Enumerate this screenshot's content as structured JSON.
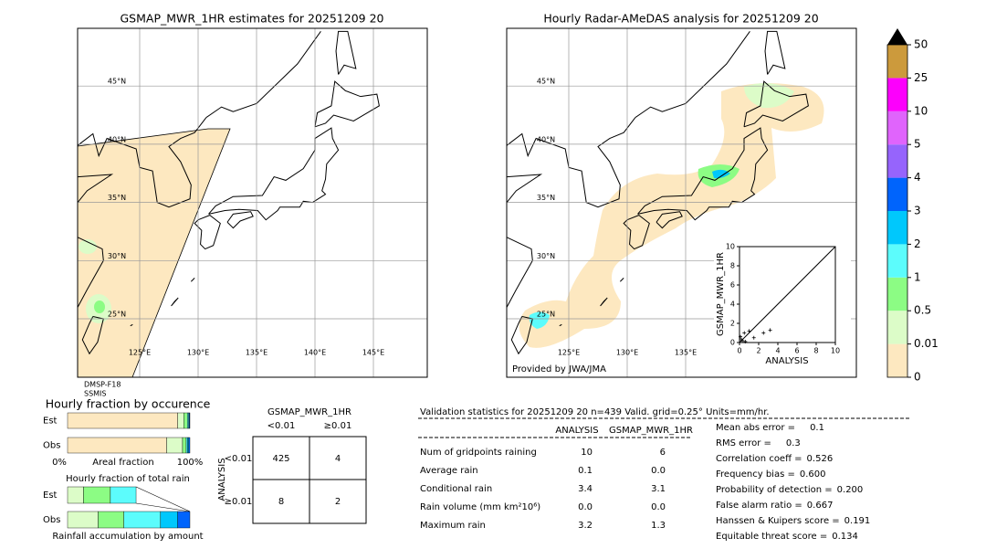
{
  "left_map": {
    "title": "GSMAP_MWR_1HR estimates for 20251209 20",
    "lat_labels": [
      {
        "value": 45,
        "label": "45°N"
      },
      {
        "value": 40,
        "label": "40°N"
      },
      {
        "value": 35,
        "label": "35°N"
      },
      {
        "value": 30,
        "label": "30°N"
      },
      {
        "value": 25,
        "label": "25°N"
      }
    ],
    "lon_labels": [
      {
        "value": 125,
        "label": "125°E"
      },
      {
        "value": 130,
        "label": "130°E"
      },
      {
        "value": 135,
        "label": "135°E"
      },
      {
        "value": 140,
        "label": "140°E"
      },
      {
        "value": 145,
        "label": "145°E"
      }
    ],
    "sensor": [
      "DMSP-F18",
      "SSMIS"
    ]
  },
  "right_map": {
    "title": "Hourly Radar-AMeDAS analysis for 20251209 20",
    "lat_labels": [
      {
        "value": 45,
        "label": "45°N"
      },
      {
        "value": 40,
        "label": "40°N"
      },
      {
        "value": 35,
        "label": "35°N"
      },
      {
        "value": 30,
        "label": "30°N"
      },
      {
        "value": 25,
        "label": "25°N"
      }
    ],
    "lon_labels": [
      {
        "value": 125,
        "label": "125°E"
      },
      {
        "value": 130,
        "label": "130°E"
      },
      {
        "value": 135,
        "label": "135°E"
      }
    ],
    "credit": "Provided by JWA/JMA"
  },
  "scatter": {
    "xlabel": "ANALYSIS",
    "ylabel": "GSMAP_MWR_1HR",
    "xlim": [
      0,
      10
    ],
    "ylim": [
      0,
      10
    ],
    "xticks": [
      0,
      2,
      4,
      6,
      8,
      10
    ],
    "yticks": [
      0,
      2,
      4,
      6,
      8,
      10
    ],
    "x": [
      0.2,
      0.5,
      1.0,
      0.3,
      2.5,
      3.2,
      0.1,
      1.5,
      0.6
    ],
    "y": [
      0.3,
      1.0,
      1.2,
      0.2,
      1.0,
      1.3,
      0.6,
      0.5,
      0.1
    ]
  },
  "colorbar": {
    "boundaries": [
      0,
      0.01,
      0.5,
      1,
      2,
      3,
      4,
      5,
      10,
      25,
      50
    ],
    "colors": [
      "#fde8c0",
      "#dcfcc8",
      "#8cfc84",
      "#5cfcfc",
      "#00c8fc",
      "#0064fc",
      "#9664fc",
      "#e064fc",
      "#fc00fc",
      "#cc9a3c"
    ],
    "extend_color": "#000000"
  },
  "occurrence": {
    "title": "Hourly fraction by occurence",
    "axis_left": "0%",
    "xlabel": "Areal fraction",
    "axis_right": "100%",
    "colors": [
      "#fde8c0",
      "#dcfcc8",
      "#8cfc84",
      "#5cfcfc",
      "#00c8fc",
      "#0064fc"
    ],
    "rows": [
      {
        "label": "Est",
        "values": [
          0.9,
          0.05,
          0.03,
          0.01,
          0.005,
          0.005
        ]
      },
      {
        "label": "Obs",
        "values": [
          0.81,
          0.13,
          0.03,
          0.01,
          0.01,
          0.01
        ]
      }
    ]
  },
  "total_rain": {
    "title": "Hourly fraction of total rain",
    "xlabel": "Rainfall accumulation by amount",
    "colors": [
      "#dcfcc8",
      "#8cfc84",
      "#5cfcfc",
      "#00c8fc",
      "#0064fc"
    ],
    "rows": [
      {
        "label": "Est",
        "values": [
          0.13,
          0.22,
          0.21
        ]
      },
      {
        "label": "Obs",
        "values": [
          0.25,
          0.21,
          0.3,
          0.14,
          0.1
        ]
      }
    ]
  },
  "contingency": {
    "col_title": "GSMAP_MWR_1HR",
    "cols": [
      "<0.01",
      "≥0.01"
    ],
    "row_title": "ANALYSIS",
    "rows": [
      "<0.01",
      "≥0.01"
    ],
    "cells": [
      [
        "425",
        "4"
      ],
      [
        "8",
        "2"
      ]
    ]
  },
  "validation": {
    "header": "Validation statistics for 20251209 20  n=439 Valid. grid=0.25° Units=mm/hr.",
    "columns": [
      "ANALYSIS",
      "GSMAP_MWR_1HR"
    ],
    "rows": [
      {
        "label": "Num of gridpoints raining",
        "values": [
          "10",
          "6"
        ]
      },
      {
        "label": "Average rain",
        "values": [
          "0.1",
          "0.0"
        ]
      },
      {
        "label": "Conditional rain",
        "values": [
          "3.4",
          "3.1"
        ]
      },
      {
        "label": "Rain volume (mm km²10⁶)",
        "values": [
          "0.0",
          "0.0"
        ]
      },
      {
        "label": "Maximum rain",
        "values": [
          "3.2",
          "1.3"
        ]
      }
    ],
    "scores": [
      {
        "label": "Mean abs error =",
        "value": "0.1"
      },
      {
        "label": "RMS error =",
        "value": "0.3"
      },
      {
        "label": "Correlation coeff =",
        "value": "0.526"
      },
      {
        "label": "Frequency bias =",
        "value": "0.600"
      },
      {
        "label": "Probability of detection =",
        "value": "0.200"
      },
      {
        "label": "False alarm ratio =",
        "value": "0.667"
      },
      {
        "label": "Hanssen & Kuipers score =",
        "value": "0.191"
      },
      {
        "label": "Equitable threat score =",
        "value": "0.134"
      }
    ]
  }
}
